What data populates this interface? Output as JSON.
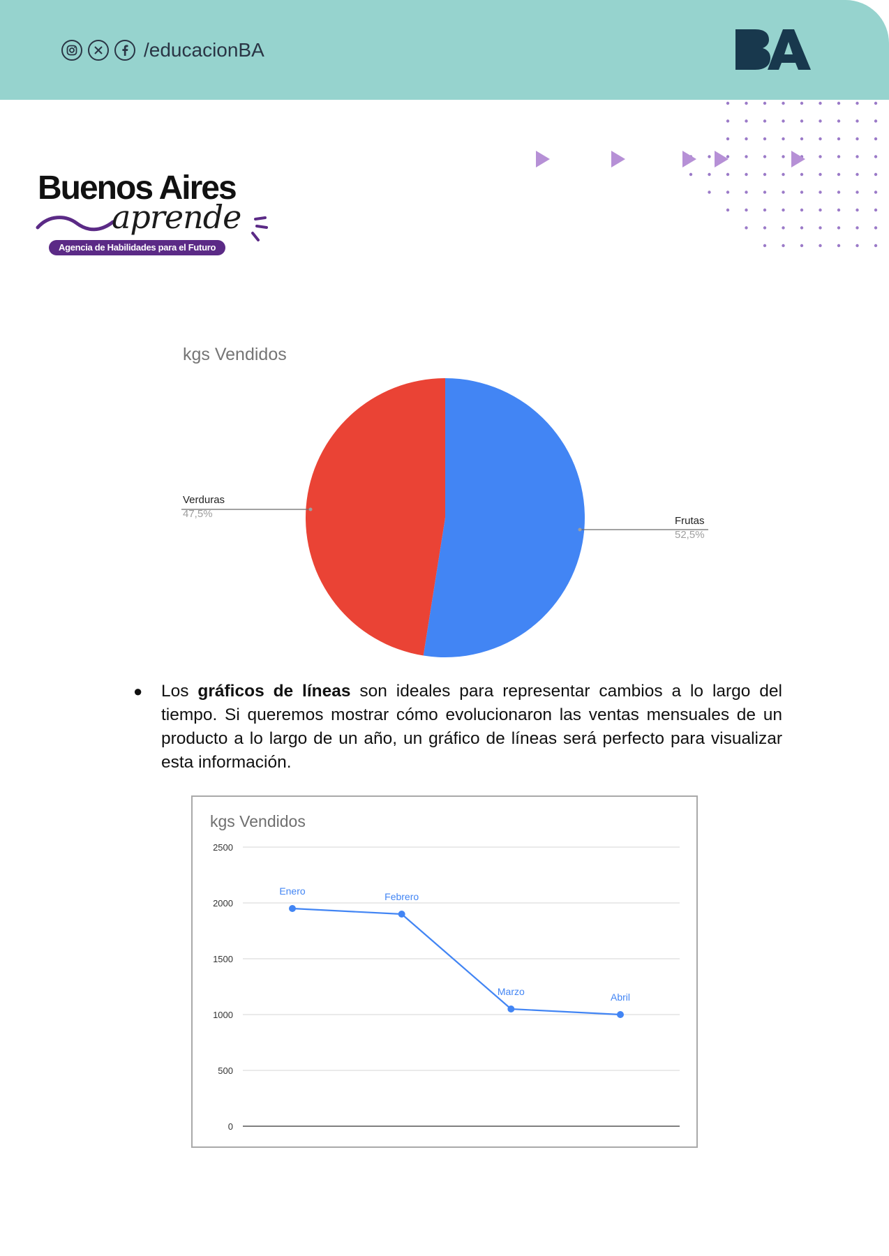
{
  "header": {
    "handle": "/educacionBA",
    "social_icons": [
      "instagram-icon",
      "x-icon",
      "facebook-icon"
    ],
    "logo_text": "BA",
    "colors": {
      "band": "#96d3ce",
      "logo": "#18384d"
    }
  },
  "brand": {
    "title": "Buenos Aires",
    "script": "aprende",
    "tagline": "Agencia de Habilidades para el Futuro",
    "colors": {
      "accent": "#5b2a86"
    }
  },
  "pie": {
    "chart_data": {
      "type": "pie",
      "title": "kgs Vendidos",
      "slices": [
        {
          "label": "Frutas",
          "percent_label": "52,5%",
          "value": 52.5,
          "color": "#4285f4"
        },
        {
          "label": "Verduras",
          "percent_label": "47,5%",
          "value": 47.5,
          "color": "#ea4335"
        }
      ]
    }
  },
  "paragraph": {
    "bullet": "●",
    "lead": "Los ",
    "bold": "gráficos de líneas",
    "rest": " son ideales para representar cambios a lo largo del tiempo. Si queremos mostrar cómo evolucionaron las ventas mensuales de un producto a lo largo de un año, un gráfico de líneas será perfecto para visualizar esta información."
  },
  "line": {
    "chart_data": {
      "type": "line",
      "title": "kgs Vendidos",
      "categories": [
        "Enero",
        "Febrero",
        "Marzo",
        "Abril"
      ],
      "values": [
        1950,
        1900,
        1050,
        1000
      ],
      "ylim": [
        0,
        2500
      ],
      "yticks": [
        0,
        500,
        1000,
        1500,
        2000,
        2500
      ],
      "grid": true,
      "color": "#4285f4"
    }
  }
}
